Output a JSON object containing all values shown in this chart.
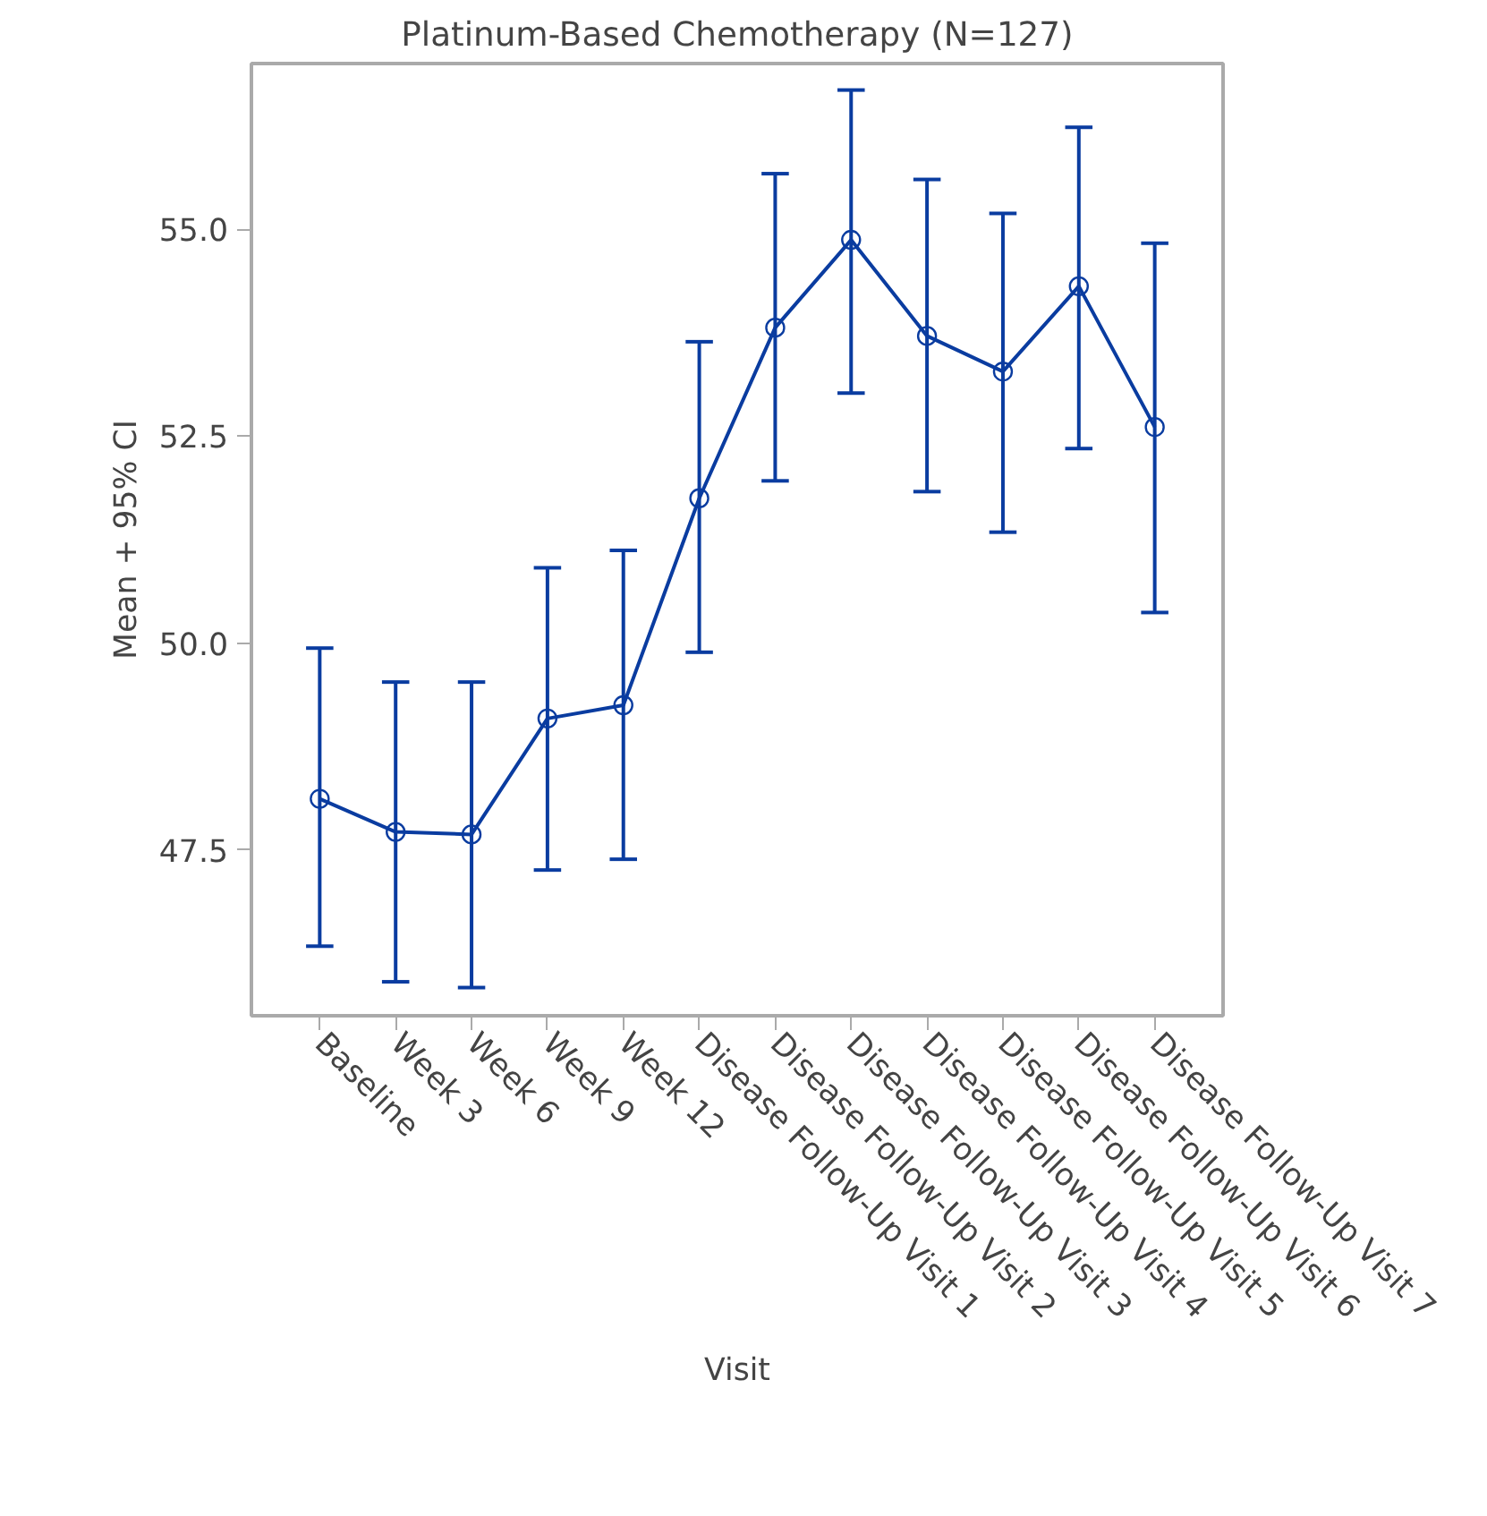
{
  "chart_data": {
    "type": "line",
    "title": "Platinum-Based Chemotherapy (N=127)",
    "xlabel": "Visit",
    "ylabel": "Mean + 95% CI",
    "categories": [
      "Baseline",
      "Week 3",
      "Week 6",
      "Week 9",
      "Week 12",
      "Disease Follow-Up Visit 1",
      "Disease Follow-Up Visit 2",
      "Disease Follow-Up Visit 3",
      "Disease Follow-Up Visit 4",
      "Disease Follow-Up Visit 5",
      "Disease Follow-Up Visit 6",
      "Disease Follow-Up Visit 7"
    ],
    "series": [
      {
        "color": "#0a3ca0",
        "values": [
          48.12,
          47.72,
          47.69,
          49.09,
          49.25,
          51.75,
          53.81,
          54.87,
          53.71,
          53.28,
          54.31,
          52.61
        ],
        "errors": [
          [
            46.34,
            49.94
          ],
          [
            45.91,
            49.53
          ],
          [
            45.84,
            49.53
          ],
          [
            47.26,
            50.91
          ],
          [
            47.39,
            51.12
          ],
          [
            49.89,
            53.64
          ],
          [
            51.96,
            55.67
          ],
          [
            53.02,
            56.68
          ],
          [
            51.83,
            55.6
          ],
          [
            51.34,
            55.19
          ],
          [
            52.35,
            56.23
          ],
          [
            50.37,
            54.83
          ]
        ]
      }
    ],
    "ylim": [
      45.5,
      57.0
    ],
    "yticks": [
      {
        "value": 47.5,
        "label": "47.5"
      },
      {
        "value": 50,
        "label": "50.0"
      },
      {
        "value": 52.5,
        "label": "52.5"
      },
      {
        "value": 55,
        "label": "55.0"
      }
    ],
    "marker": "circle",
    "grid": false
  }
}
